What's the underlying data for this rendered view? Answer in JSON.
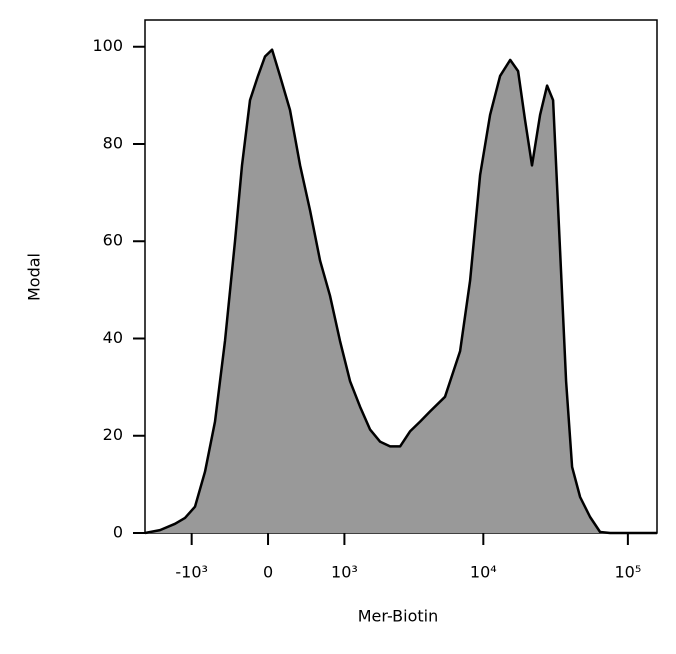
{
  "chart_data": {
    "type": "area",
    "xlabel": "Mer-Biotin",
    "ylabel": "Modal",
    "xscale": "biexponential",
    "color": "#999999",
    "line_color": "#000000",
    "x": [
      -2259,
      -1756,
      -1355,
      -1132,
      -938,
      -767,
      -616,
      -481,
      -358,
      -277,
      -189,
      -104,
      -31,
      42,
      125,
      232,
      346,
      468,
      603,
      751,
      919,
      1112,
      1331,
      1584,
      1877,
      2222,
      2620,
      3083,
      3627,
      4264,
      5421,
      6897,
      8093,
      9497,
      11141,
      13065,
      15340,
      17420,
      19435,
      21742,
      24700,
      27625,
      30388,
      33995,
      37375,
      41145,
      46735,
      54795,
      64220,
      75335,
      159000
    ],
    "values": [
      0,
      0.6,
      1.9,
      3.1,
      5.4,
      12.6,
      22.9,
      39.5,
      60,
      75.6,
      89,
      94,
      98,
      99.4,
      94,
      87,
      75.6,
      66.3,
      56,
      48.8,
      39.5,
      31.2,
      26,
      21.3,
      18.8,
      17.8,
      17.8,
      20.9,
      22.9,
      25,
      28,
      37.4,
      51.9,
      73.6,
      86,
      94,
      97.3,
      95,
      85,
      75.6,
      86,
      92,
      89,
      58,
      31.2,
      13.6,
      7.4,
      3.3,
      0.2,
      0,
      0
    ],
    "xlim": [
      -2259,
      159000
    ],
    "xticks": [
      {
        "value": -1000,
        "label": "-10³"
      },
      0,
      {
        "value": 1000,
        "label": "10³"
      },
      {
        "value": 10000,
        "label": "10⁴"
      },
      {
        "value": 100000,
        "label": "10⁵"
      }
    ],
    "ylim": [
      0,
      105.5
    ],
    "yticks": [
      0,
      20,
      40,
      60,
      80,
      100
    ]
  }
}
